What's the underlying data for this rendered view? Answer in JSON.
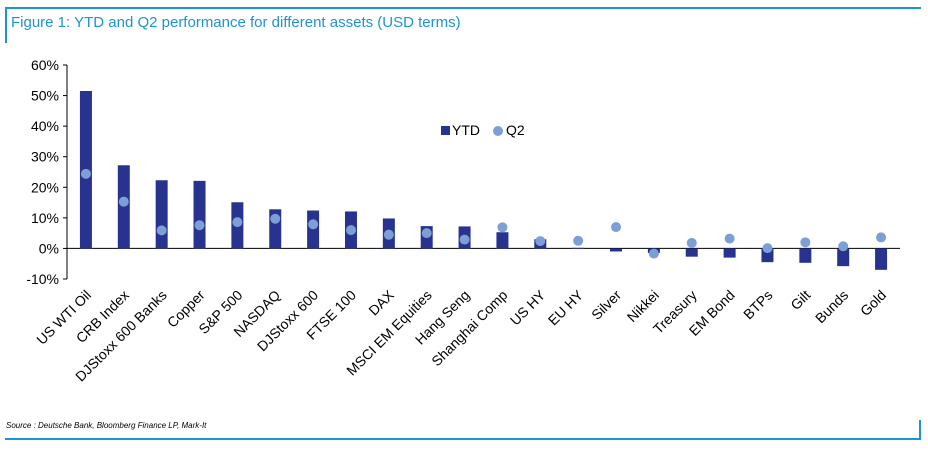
{
  "figure": {
    "title": "Figure 1: YTD and Q2 performance for different assets (USD terms)",
    "source": "Source : Deutsche Bank, Bloomberg Finance LP, Mark-It"
  },
  "colors": {
    "frame": "#1d94d2",
    "bar": "#27338f",
    "dot": "#7c9fd6"
  },
  "chart_data": {
    "type": "bar",
    "categories": [
      "US WTI Oil",
      "CRB Index",
      "DJStoxx 600 Banks",
      "Copper",
      "S&P 500",
      "NASDAQ",
      "DJStoxx 600",
      "FTSE 100",
      "DAX",
      "MSCI EM Equities",
      "Hang Seng",
      "Shanghai Comp",
      "US HY",
      "EU HY",
      "Silver",
      "Nikkei",
      "Treasury",
      "EM Bond",
      "BTPs",
      "Gilt",
      "Bunds",
      "Gold"
    ],
    "series": [
      {
        "name": "YTD",
        "marker": "bar",
        "values": [
          51.5,
          27.2,
          22.3,
          22.1,
          15.1,
          12.8,
          12.4,
          12.1,
          9.8,
          7.3,
          7.2,
          5.3,
          3.0,
          0.2,
          -1.0,
          -1.5,
          -2.7,
          -3.0,
          -4.5,
          -4.7,
          -5.8,
          -7.0
        ]
      },
      {
        "name": "Q2",
        "marker": "dot",
        "values": [
          24.4,
          15.3,
          5.9,
          7.6,
          8.6,
          9.7,
          7.9,
          6.0,
          4.5,
          5.0,
          2.9,
          6.9,
          2.4,
          2.5,
          7.0,
          -1.7,
          1.8,
          3.2,
          0.1,
          2.0,
          0.7,
          3.6
        ]
      }
    ],
    "ylim": [
      -10,
      60
    ],
    "y_ticks": [
      "-10%",
      "0%",
      "10%",
      "20%",
      "30%",
      "40%",
      "50%",
      "60%"
    ],
    "legend": {
      "labels": [
        "YTD",
        "Q2"
      ],
      "placement": "upper-center"
    },
    "grid": false
  }
}
